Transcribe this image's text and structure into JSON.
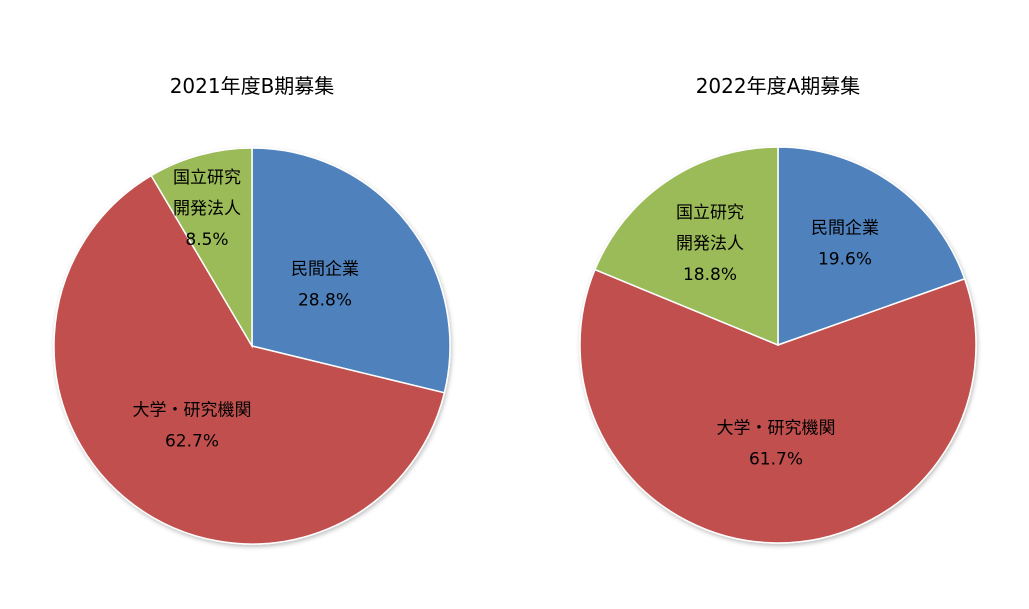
{
  "chart_data": [
    {
      "type": "pie",
      "title": "2021年度B期募集",
      "slices": [
        {
          "label": [
            "民間企業"
          ],
          "value": 28.8,
          "value_text": "28.8%",
          "color": "#4F81BD"
        },
        {
          "label": [
            "大学・研究機関"
          ],
          "value": 62.7,
          "value_text": "62.7%",
          "color": "#C0504D"
        },
        {
          "label": [
            "国立研究",
            "開発法人"
          ],
          "value": 8.5,
          "value_text": "8.5%",
          "color": "#9BBB59"
        }
      ],
      "start_angle": "12 o'clock",
      "direction": "clockwise",
      "legend": "none"
    },
    {
      "type": "pie",
      "title": "2022年度A期募集",
      "slices": [
        {
          "label": [
            "民間企業"
          ],
          "value": 19.6,
          "value_text": "19.6%",
          "color": "#4F81BD"
        },
        {
          "label": [
            "大学・研究機関"
          ],
          "value": 61.7,
          "value_text": "61.7%",
          "color": "#C0504D"
        },
        {
          "label": [
            "国立研究",
            "開発法人"
          ],
          "value": 18.8,
          "value_text": "18.8%",
          "color": "#9BBB59"
        }
      ],
      "start_angle": "12 o'clock",
      "direction": "clockwise",
      "legend": "none"
    }
  ]
}
